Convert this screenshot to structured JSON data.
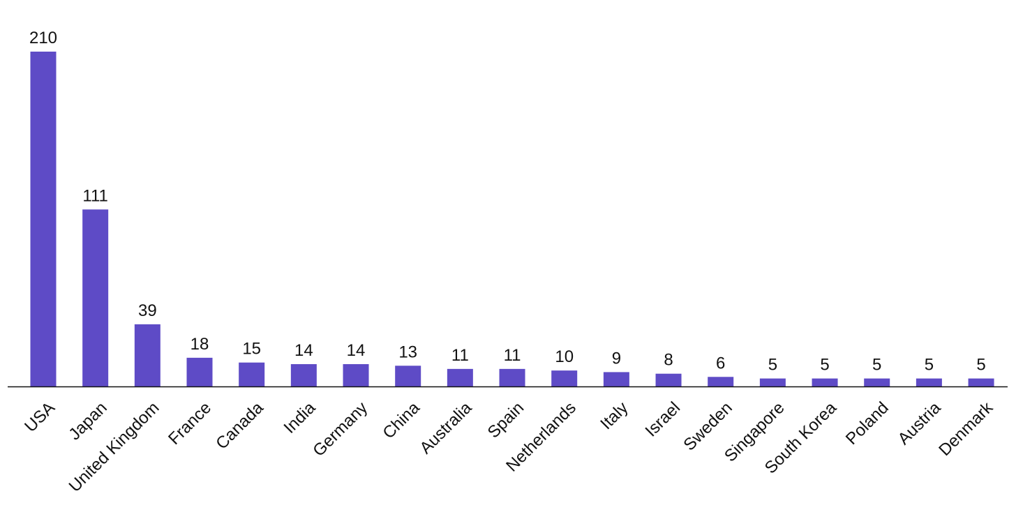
{
  "chart_data": {
    "type": "bar",
    "categories": [
      "USA",
      "Japan",
      "United Kingdom",
      "France",
      "Canada",
      "India",
      "Germany",
      "China",
      "Australia",
      "Spain",
      "Netherlands",
      "Italy",
      "Israel",
      "Sweden",
      "Singapore",
      "South Korea",
      "Poland",
      "Austria",
      "Denmark"
    ],
    "values": [
      210,
      111,
      39,
      18,
      15,
      14,
      14,
      13,
      11,
      11,
      10,
      9,
      8,
      6,
      5,
      5,
      5,
      5,
      5
    ],
    "title": "",
    "xlabel": "",
    "ylabel": "",
    "ylim": [
      0,
      210
    ],
    "grid": false,
    "legend": "none",
    "bar_color": "#5e4bc6",
    "axis_color": "#111111"
  }
}
